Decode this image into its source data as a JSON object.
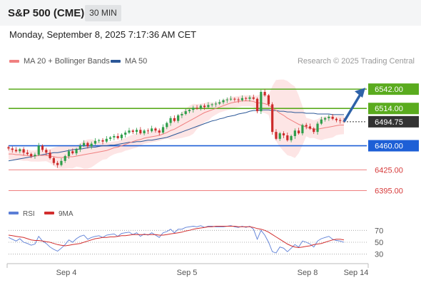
{
  "header": {
    "symbol": "S&P 500 (CME)",
    "timeframe": "30 MIN"
  },
  "timestamp": "Monday, September 8, 2025 7:17:36 AM CET",
  "legend": [
    {
      "label": "MA 20 + Bollinger Bands",
      "color": "#f08080"
    },
    {
      "label": "MA 50",
      "color": "#2b5797"
    }
  ],
  "source": "Research © 2025 Trading Central",
  "colors": {
    "resistance": "#5aab1e",
    "support": "#1d5fd6",
    "pivot": "#ef8080",
    "last": "#333333",
    "arrow": "#2e62a8",
    "up_candle": "#2e9e4a",
    "down_candle": "#cc2b2b"
  },
  "chart_data": [
    {
      "type": "candlestick",
      "ylim": [
        6380,
        6570
      ],
      "x_ticks": [
        "Sep 4",
        "Sep 5",
        "Sep 8",
        "Sep 14"
      ],
      "last_price": {
        "value": 6494.75,
        "label": "6494.75"
      },
      "levels": [
        {
          "value": 6542.0,
          "label": "6542.00",
          "kind": "resistance"
        },
        {
          "value": 6514.0,
          "label": "6514.00",
          "kind": "resistance"
        },
        {
          "value": 6460.0,
          "label": "6460.00",
          "kind": "support"
        },
        {
          "value": 6425.0,
          "label": "6425.00",
          "kind": "pivot"
        },
        {
          "value": 6395.0,
          "label": "6395.00",
          "kind": "pivot"
        }
      ],
      "close": [
        6456,
        6454,
        6452,
        6455,
        6450,
        6448,
        6445,
        6447,
        6460,
        6454,
        6450,
        6442,
        6435,
        6432,
        6438,
        6445,
        6452,
        6449,
        6455,
        6460,
        6464,
        6459,
        6463,
        6467,
        6468,
        6466,
        6470,
        6472,
        6474,
        6471,
        6476,
        6479,
        6482,
        6480,
        6483,
        6478,
        6482,
        6481,
        6485,
        6482,
        6479,
        6487,
        6493,
        6500,
        6496,
        6504,
        6506,
        6510,
        6512,
        6515,
        6514,
        6518,
        6516,
        6519,
        6520,
        6521,
        6523,
        6526,
        6527,
        6528,
        6527,
        6526,
        6529,
        6528,
        6530,
        6528,
        6510,
        6538,
        6533,
        6520,
        6480,
        6470,
        6478,
        6475,
        6468,
        6474,
        6482,
        6478,
        6490,
        6488,
        6485,
        6480,
        6492,
        6498,
        6500,
        6502,
        6499,
        6497,
        6496,
        6495
      ],
      "ma20": [
        6448,
        6448,
        6447,
        6447,
        6446,
        6446,
        6445,
        6445,
        6446,
        6446,
        6446,
        6445,
        6444,
        6443,
        6443,
        6443,
        6444,
        6444,
        6445,
        6446,
        6447,
        6448,
        6449,
        6450,
        6451,
        6452,
        6453,
        6455,
        6457,
        6458,
        6460,
        6462,
        6464,
        6466,
        6468,
        6469,
        6471,
        6472,
        6473,
        6474,
        6475,
        6477,
        6479,
        6482,
        6484,
        6487,
        6490,
        6493,
        6496,
        6499,
        6502,
        6505,
        6508,
        6510,
        6512,
        6514,
        6516,
        6518,
        6520,
        6522,
        6523,
        6524,
        6525,
        6525,
        6525,
        6524,
        6522,
        6522,
        6521,
        6519,
        6515,
        6511,
        6507,
        6504,
        6500,
        6497,
        6494,
        6491,
        6489,
        6487,
        6485,
        6484,
        6484,
        6485,
        6486,
        6487,
        6488,
        6489,
        6490,
        6490
      ],
      "ma50": [
        6438,
        6439,
        6440,
        6441,
        6442,
        6443,
        6444,
        6445,
        6446,
        6447,
        6448,
        6449,
        6450,
        6450,
        6451,
        6452,
        6453,
        6454,
        6455,
        6455,
        6456,
        6457,
        6458,
        6458,
        6459,
        6460,
        6460,
        6461,
        6461,
        6462,
        6463,
        6464,
        6465,
        6465,
        6466,
        6466,
        6467,
        6468,
        6468,
        6469,
        6470,
        6471,
        6472,
        6474,
        6476,
        6478,
        6480,
        6482,
        6484,
        6486,
        6488,
        6490,
        6492,
        6494,
        6496,
        6497,
        6499,
        6500,
        6502,
        6503,
        6504,
        6506,
        6507,
        6508,
        6510,
        6511,
        6511,
        6512,
        6512,
        6512,
        6511,
        6511,
        6510,
        6510,
        6509,
        6509,
        6508,
        6508,
        6508,
        6507,
        6507,
        6507,
        6506,
        6506,
        6506,
        6506,
        6505,
        6505,
        6505,
        6505
      ],
      "rsi": {
        "ylim": [
          20,
          80
        ],
        "ticks": [
          70,
          50,
          30
        ],
        "series": [
          {
            "name": "RSI",
            "color": "#5b7ed6",
            "values": [
              58,
              55,
              52,
              56,
              50,
              48,
              45,
              47,
              60,
              52,
              48,
              42,
              38,
              35,
              40,
              46,
              54,
              50,
              56,
              60,
              62,
              55,
              58,
              60,
              61,
              58,
              62,
              63,
              64,
              60,
              65,
              66,
              67,
              63,
              66,
              60,
              64,
              62,
              66,
              62,
              58,
              66,
              68,
              72,
              66,
              72,
              72,
              75,
              76,
              77,
              76,
              78,
              75,
              77,
              77,
              76,
              76,
              76,
              77,
              78,
              76,
              75,
              77,
              75,
              77,
              72,
              55,
              70,
              62,
              50,
              34,
              32,
              42,
              40,
              34,
              40,
              46,
              42,
              52,
              50,
              47,
              42,
              52,
              56,
              58,
              60,
              55,
              53,
              52,
              50
            ]
          },
          {
            "name": "9MA",
            "color": "#d22e2e",
            "values": [
              62,
              61,
              60,
              59,
              58,
              56,
              54,
              53,
              53,
              52,
              51,
              50,
              48,
              46,
              45,
              44,
              45,
              46,
              47,
              48,
              50,
              52,
              54,
              56,
              57,
              58,
              58,
              59,
              59,
              60,
              61,
              61,
              62,
              63,
              63,
              63,
              63,
              63,
              63,
              63,
              62,
              62,
              63,
              64,
              65,
              66,
              67,
              69,
              70,
              72,
              73,
              74,
              75,
              76,
              76,
              77,
              77,
              77,
              77,
              77,
              77,
              76,
              76,
              76,
              76,
              75,
              73,
              72,
              70,
              67,
              63,
              59,
              55,
              51,
              47,
              44,
              42,
              41,
              42,
              43,
              44,
              46,
              47,
              48,
              50,
              52,
              54,
              55,
              55,
              54
            ]
          }
        ]
      }
    }
  ]
}
